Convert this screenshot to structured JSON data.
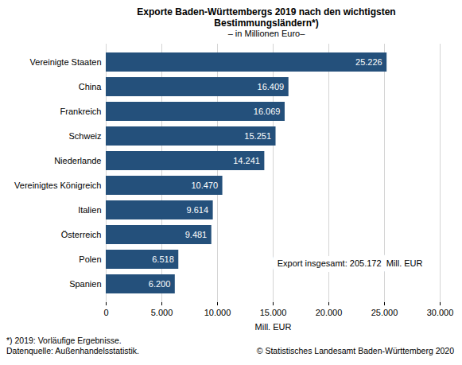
{
  "chart_data": {
    "type": "bar",
    "orientation": "horizontal",
    "title": "Exporte Baden-Württembergs 2019 nach den wichtigsten Bestimmungsländern*)",
    "subtitle": "– in Millionen Euro–",
    "x_label": "Mill. EUR",
    "categories": [
      "Vereinigte Staaten",
      "China",
      "Frankreich",
      "Schweiz",
      "Niederlande",
      "Vereinigtes Königreich",
      "Italien",
      "Österreich",
      "Polen",
      "Spanien"
    ],
    "values": [
      25226,
      16409,
      16069,
      15251,
      14241,
      10470,
      9614,
      9481,
      6518,
      6200
    ],
    "value_labels": [
      "25.226",
      "16.409",
      "16.069",
      "15.251",
      "14.241",
      "10.470",
      "9.614",
      "9.481",
      "6.518",
      "6.200"
    ],
    "data_labels": true,
    "color": "#24507b",
    "xlim": [
      0,
      30000
    ],
    "xticks": [
      0,
      {
        "value": 5000,
        "label": "5.000"
      },
      {
        "value": 10000,
        "label": "10.000"
      },
      {
        "value": 15000,
        "label": "15.000"
      },
      {
        "value": 20000,
        "label": "20.000"
      },
      {
        "value": 25000,
        "label": "25.000"
      },
      {
        "value": 30000,
        "label": "30.000"
      }
    ],
    "grid": true,
    "annotations": [
      "Export insgesamt: 205.172  Mill. EUR"
    ],
    "notes": [
      "*) 2019: Vorläufige Ergebnisse.",
      "Datenquelle: Außenhandelsstatistik."
    ],
    "source": "© Statistisches Landesamt Baden-Württemberg 2020"
  }
}
